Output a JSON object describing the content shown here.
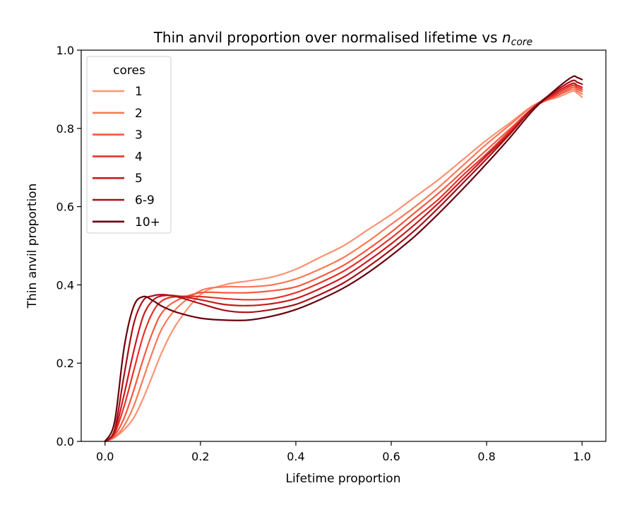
{
  "chart_data": {
    "type": "line",
    "title": "Thin anvil proportion over normalised lifetime vs ",
    "title_math": "n",
    "title_math_sub": "core",
    "xlabel": "Lifetime proportion",
    "ylabel": "Thin anvil proportion",
    "xlim": [
      -0.05,
      1.05
    ],
    "ylim": [
      0.0,
      1.0
    ],
    "xticks": [
      0.0,
      0.2,
      0.4,
      0.6,
      0.8,
      1.0
    ],
    "xtick_labels": [
      "0.0",
      "0.2",
      "0.4",
      "0.6",
      "0.8",
      "1.0"
    ],
    "yticks": [
      0.0,
      0.2,
      0.4,
      0.6,
      0.8,
      1.0
    ],
    "ytick_labels": [
      "0.0",
      "0.2",
      "0.4",
      "0.6",
      "0.8",
      "1.0"
    ],
    "grid": false,
    "legend": {
      "title": "cores",
      "placement": "upper-left"
    },
    "x": [
      0.0,
      0.02,
      0.04,
      0.06,
      0.08,
      0.1,
      0.12,
      0.15,
      0.2,
      0.25,
      0.3,
      0.35,
      0.4,
      0.45,
      0.5,
      0.55,
      0.6,
      0.65,
      0.7,
      0.75,
      0.8,
      0.85,
      0.9,
      0.95,
      0.98,
      0.99,
      1.0
    ],
    "series": [
      {
        "name": "1",
        "color": "#fc9272",
        "values": [
          0.0,
          0.01,
          0.03,
          0.06,
          0.11,
          0.17,
          0.23,
          0.3,
          0.375,
          0.4,
          0.41,
          0.42,
          0.44,
          0.47,
          0.5,
          0.54,
          0.58,
          0.625,
          0.67,
          0.72,
          0.77,
          0.815,
          0.86,
          0.88,
          0.895,
          0.89,
          0.88
        ]
      },
      {
        "name": "2",
        "color": "#fb7858",
        "values": [
          0.0,
          0.01,
          0.04,
          0.09,
          0.16,
          0.23,
          0.29,
          0.34,
          0.385,
          0.395,
          0.395,
          0.4,
          0.415,
          0.44,
          0.47,
          0.51,
          0.555,
          0.6,
          0.65,
          0.705,
          0.76,
          0.81,
          0.86,
          0.885,
          0.9,
          0.895,
          0.888
        ]
      },
      {
        "name": "3",
        "color": "#f4583f",
        "values": [
          0.0,
          0.015,
          0.06,
          0.13,
          0.21,
          0.28,
          0.33,
          0.36,
          0.38,
          0.38,
          0.38,
          0.385,
          0.395,
          0.42,
          0.45,
          0.49,
          0.535,
          0.585,
          0.635,
          0.69,
          0.745,
          0.8,
          0.855,
          0.885,
          0.905,
          0.9,
          0.895
        ]
      },
      {
        "name": "4",
        "color": "#e53429",
        "values": [
          0.0,
          0.02,
          0.09,
          0.18,
          0.27,
          0.33,
          0.36,
          0.37,
          0.37,
          0.365,
          0.362,
          0.365,
          0.38,
          0.405,
          0.435,
          0.475,
          0.52,
          0.57,
          0.62,
          0.68,
          0.735,
          0.795,
          0.855,
          0.89,
          0.91,
          0.905,
          0.9
        ]
      },
      {
        "name": "5",
        "color": "#c9181e",
        "values": [
          0.0,
          0.025,
          0.12,
          0.23,
          0.32,
          0.36,
          0.372,
          0.372,
          0.362,
          0.35,
          0.347,
          0.352,
          0.365,
          0.39,
          0.42,
          0.46,
          0.505,
          0.555,
          0.61,
          0.67,
          0.73,
          0.79,
          0.855,
          0.895,
          0.915,
          0.91,
          0.905
        ]
      },
      {
        "name": "6-9",
        "color": "#a70f15",
        "values": [
          0.0,
          0.03,
          0.17,
          0.3,
          0.36,
          0.372,
          0.375,
          0.37,
          0.352,
          0.335,
          0.33,
          0.337,
          0.35,
          0.375,
          0.405,
          0.445,
          0.49,
          0.54,
          0.598,
          0.66,
          0.722,
          0.787,
          0.855,
          0.9,
          0.922,
          0.918,
          0.913
        ]
      },
      {
        "name": "10+",
        "color": "#67000d",
        "values": [
          0.0,
          0.05,
          0.24,
          0.345,
          0.37,
          0.36,
          0.345,
          0.33,
          0.315,
          0.31,
          0.31,
          0.32,
          0.337,
          0.362,
          0.392,
          0.43,
          0.475,
          0.525,
          0.583,
          0.645,
          0.71,
          0.778,
          0.85,
          0.905,
          0.932,
          0.93,
          0.925
        ]
      }
    ]
  }
}
